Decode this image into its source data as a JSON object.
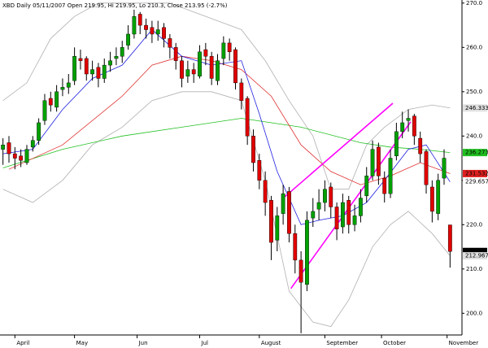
{
  "chart_data": {
    "type": "candlestick",
    "title": "XBD  Daily 05/11/2007 Open 219.95, Hi 219.95, Lo 210.3, Close 213.95 (-2.7%)",
    "x": [
      0,
      1,
      2,
      3,
      4,
      5,
      6,
      7,
      8,
      9,
      10,
      11,
      12,
      13,
      14,
      15,
      16,
      17,
      18,
      19,
      20,
      21,
      22,
      23,
      24,
      25,
      26,
      27,
      28,
      29,
      30,
      31,
      32,
      33,
      34,
      35,
      36,
      37,
      38,
      39,
      40,
      41,
      42,
      43,
      44,
      45,
      46,
      47,
      48,
      49,
      50,
      51,
      52,
      53,
      54,
      55,
      56,
      57,
      58,
      59,
      60,
      61,
      62,
      63,
      64,
      65,
      66,
      67,
      68,
      69,
      70,
      71,
      72,
      73,
      74,
      75
    ],
    "open": [
      237,
      238.5,
      236,
      235.5,
      234,
      237.5,
      239,
      243.5,
      248.5,
      246.5,
      250.5,
      251,
      252.5,
      257.5,
      257.5,
      254,
      255.5,
      253,
      256,
      257.5,
      258,
      260.5,
      263,
      267.5,
      265,
      264.5,
      263,
      264.5,
      262,
      260,
      257,
      253.5,
      255,
      253.5,
      259.5,
      258,
      252.5,
      257.5,
      261,
      259.5,
      252,
      248.5,
      240,
      234.5,
      230,
      225.5,
      216.5,
      222.5,
      227.5,
      218,
      212,
      206.5,
      221.5,
      223.5,
      225,
      228.5,
      224,
      219.5,
      225.5,
      220,
      222,
      226.5,
      231,
      237.5,
      230.5,
      227,
      235.5,
      241,
      243.5,
      244.5,
      239.5,
      236.5,
      228.5,
      222.5,
      230.5,
      219.95
    ],
    "high": [
      239.5,
      240,
      237.5,
      237,
      238,
      240,
      244,
      249.5,
      250,
      251.5,
      253,
      254,
      260,
      259.5,
      258,
      257,
      256.5,
      257.5,
      259,
      260,
      261.5,
      265,
      268.5,
      268,
      266.5,
      266,
      266,
      265.5,
      263,
      261,
      258,
      257,
      256.5,
      260.5,
      261,
      259,
      258.5,
      262.5,
      262,
      260,
      253,
      249,
      241.5,
      236,
      232,
      226.5,
      224,
      229,
      228.5,
      220,
      214,
      223,
      226,
      228,
      230,
      229.5,
      225,
      227,
      226.5,
      224.5,
      228,
      233,
      239,
      238.5,
      232,
      237,
      243,
      245.5,
      246,
      245,
      241,
      237,
      230,
      231.5,
      237,
      219.95
    ],
    "low": [
      233.5,
      234,
      232.5,
      233,
      233.5,
      236.5,
      238,
      242.5,
      245.5,
      245.5,
      249,
      249.5,
      251.5,
      255,
      252.5,
      252.5,
      251,
      252,
      254.5,
      256,
      256.5,
      259.5,
      262,
      263,
      262,
      261,
      261.5,
      260,
      257.5,
      255,
      251,
      252,
      252,
      253,
      256,
      251.5,
      251.5,
      256,
      257,
      250.5,
      246,
      238,
      232,
      228,
      222,
      212,
      214,
      220,
      216,
      209,
      195.5,
      205,
      219.5,
      221,
      223,
      221.5,
      216.5,
      218,
      218,
      218.5,
      220.5,
      225,
      230,
      229,
      225,
      226,
      234.5,
      239.5,
      241,
      238,
      234,
      227,
      220.5,
      221,
      229,
      210.3
    ],
    "close": [
      238,
      236,
      235,
      234.5,
      237,
      239,
      243,
      248,
      247,
      250,
      251,
      252,
      258,
      257,
      254,
      255,
      253,
      256,
      257,
      258,
      260,
      263,
      267,
      265,
      264,
      263,
      264,
      262,
      260,
      257,
      253,
      255,
      254,
      259,
      258,
      253,
      257,
      261,
      259,
      252,
      248,
      240,
      234,
      230,
      225,
      216,
      222,
      227,
      218,
      212,
      207,
      221,
      223,
      225,
      228,
      224,
      219,
      225,
      220,
      222,
      226,
      231,
      237,
      231,
      227,
      235,
      241,
      243,
      244,
      240,
      236,
      229,
      223,
      230,
      235,
      213.95
    ],
    "up_color": "#00a000",
    "down_color": "#e00000",
    "wick_color": "#000000",
    "xlim": [
      -0.5,
      77
    ],
    "xticks": [
      {
        "value": 2,
        "label": "April"
      },
      {
        "value": 12,
        "label": "May"
      },
      {
        "value": 22.5,
        "label": "Jun"
      },
      {
        "value": 33,
        "label": "Jul"
      },
      {
        "value": 43,
        "label": "August"
      },
      {
        "value": 54,
        "label": "September"
      },
      {
        "value": 63.5,
        "label": "October"
      },
      {
        "value": 74.5,
        "label": "November"
      }
    ],
    "ylim": [
      195.1,
      270.7
    ],
    "yticks": [
      {
        "value": 200,
        "label": "200.0"
      },
      {
        "value": 210,
        "label": "210.0"
      },
      {
        "value": 220,
        "label": "220.0"
      },
      {
        "value": 230,
        "label": "230.0"
      },
      {
        "value": 240,
        "label": "240.0"
      },
      {
        "value": 250,
        "label": "250.0"
      },
      {
        "value": 260,
        "label": "260.0"
      },
      {
        "value": 270,
        "label": "270.0"
      }
    ],
    "overlays": [
      {
        "color": "#b0b0b0",
        "x": [
          0,
          4,
          8,
          12,
          16,
          20,
          24,
          28,
          32,
          36,
          40,
          44,
          48,
          52,
          55,
          58,
          61,
          64,
          68,
          72,
          75
        ],
        "values": [
          248,
          252,
          262,
          267,
          270,
          270,
          270,
          270,
          268,
          266,
          264,
          257,
          248,
          240,
          228,
          228,
          238,
          242,
          246,
          247,
          246.333
        ]
      },
      {
        "color": "#b0b0b0",
        "x": [
          0,
          5,
          10,
          15,
          20,
          25,
          30,
          35,
          40,
          44,
          48,
          52,
          55,
          58,
          62,
          65,
          68,
          72,
          75
        ],
        "values": [
          228,
          225,
          230,
          238,
          242,
          248,
          250,
          250,
          248,
          230,
          205,
          198,
          197,
          203,
          215,
          220,
          223,
          218,
          212.967
        ]
      },
      {
        "color": "#20c020",
        "x": [
          0,
          10,
          20,
          30,
          40,
          50,
          60,
          65,
          70,
          75
        ],
        "values": [
          232.8,
          237,
          240,
          242,
          244,
          242,
          238.5,
          237.5,
          237,
          236.273
        ]
      },
      {
        "color": "#e03030",
        "x": [
          1,
          10,
          20,
          25,
          30,
          35,
          40,
          45,
          50,
          55,
          60,
          65,
          70,
          75
        ],
        "values": [
          232.5,
          238,
          249,
          256,
          258,
          257,
          255,
          249,
          238,
          232,
          229,
          231,
          234,
          231.532
        ]
      },
      {
        "color": "#2020e0",
        "x": [
          0,
          5,
          10,
          15,
          20,
          25,
          30,
          35,
          40,
          43,
          46,
          50,
          53,
          57,
          61,
          64,
          68,
          71,
          75
        ],
        "values": [
          236,
          237,
          246,
          253,
          256,
          264,
          258,
          256,
          257,
          245,
          232,
          220,
          221,
          222,
          225,
          230,
          237,
          238,
          229.657
        ]
      }
    ],
    "trendlines": [
      {
        "color": "#ff00ff",
        "x": [
          47.1,
          65.4
        ],
        "values": [
          226.1,
          247.4
        ]
      },
      {
        "color": "#ff00ff",
        "x": [
          48.3,
          68.4
        ],
        "values": [
          205.6,
          243.2
        ]
      }
    ],
    "price_labels": [
      {
        "value": 246.333,
        "color": "#e0e0e0",
        "text_color": "#000000"
      },
      {
        "value": 236.273,
        "color": "#20c020",
        "text_color": "#000000"
      },
      {
        "value": 231.532,
        "color": "#e02020",
        "text_color": "#000000"
      },
      {
        "value": 229.657,
        "color": "#ffffff",
        "text_color": "#2020e0"
      },
      {
        "value": 213.95,
        "color": "#000000",
        "text_color": "#ffffff"
      },
      {
        "value": 212.967,
        "color": "#e0e0e0",
        "text_color": "#000000"
      }
    ]
  }
}
